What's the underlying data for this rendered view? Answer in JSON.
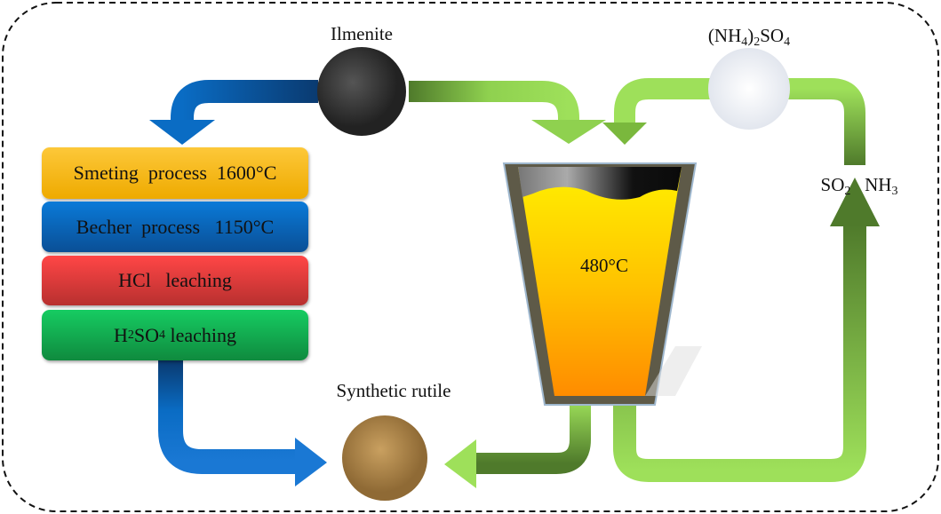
{
  "labels": {
    "ilmenite": "Ilmenite",
    "ammonium_sulfate": {
      "prefix": "(NH",
      "sub1": "4",
      "mid": ")",
      "sub2": "2",
      "rest": "SO",
      "sub3": "4"
    },
    "gases": {
      "so": "SO",
      "so_sub": "2",
      "nh": "NH",
      "nh_sub": "3"
    },
    "synthetic_rutile": "Synthetic rutile",
    "furnace_temperature": "480°C"
  },
  "process_boxes": [
    {
      "label": "Smeting  process  1600°C",
      "color": "#f5b700"
    },
    {
      "label": "Becher  process   1150°C",
      "color": "#0a6cc4"
    },
    {
      "label": "HCl   leaching",
      "color": "#e8393d"
    },
    {
      "h": "H",
      "sub1": "2",
      "so": "SO",
      "sub2": "4",
      "rest": " leaching",
      "color": "#12b956"
    }
  ],
  "colors": {
    "blue_arrow": "#0a6cc4",
    "green_arrow": "#8fd14f",
    "green_dark": "#4f7a2b"
  }
}
